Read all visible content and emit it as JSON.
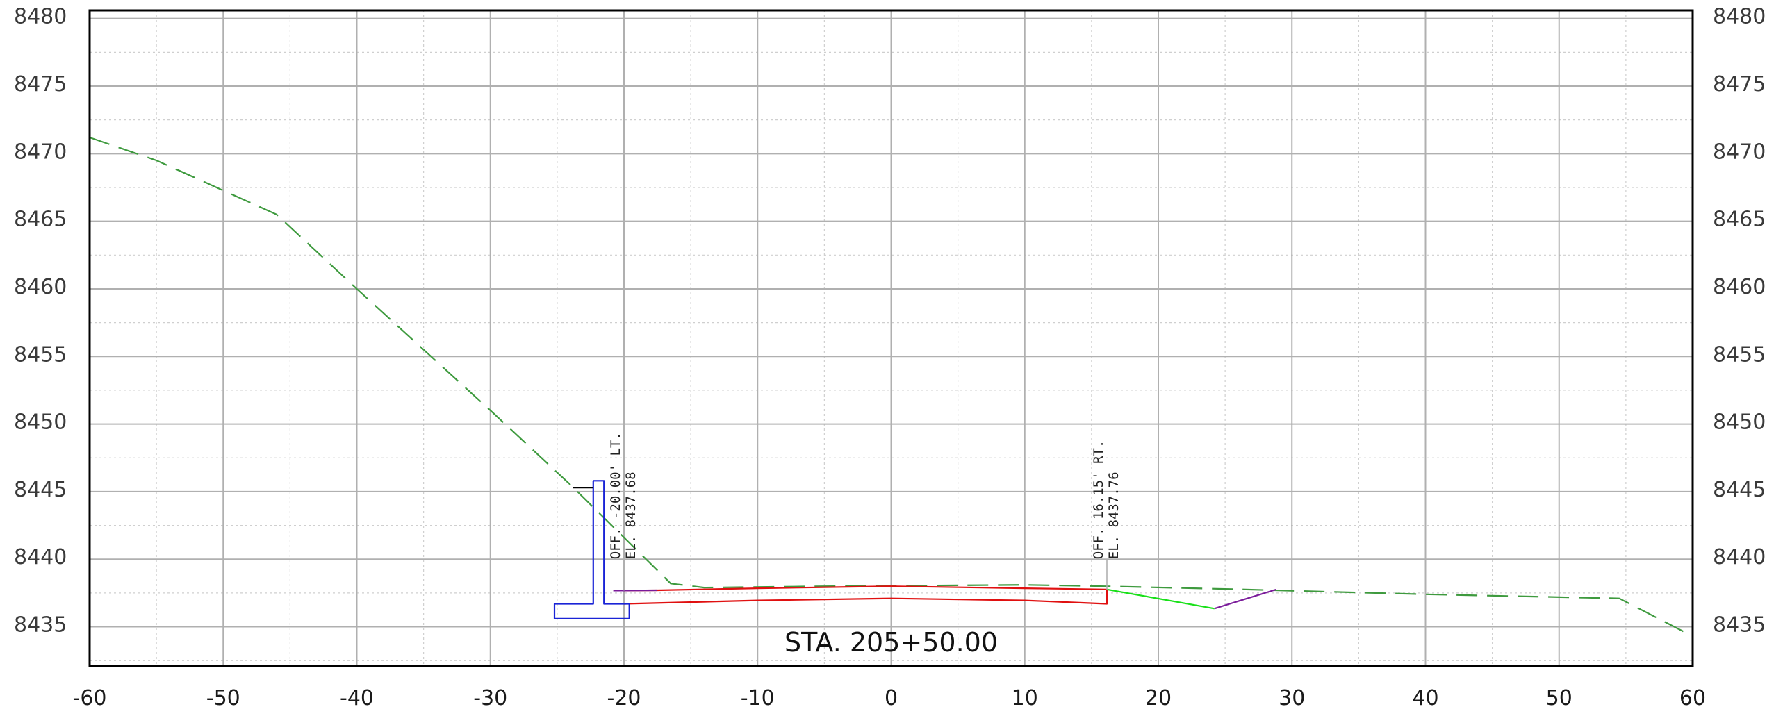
{
  "chart_data": {
    "type": "cross-section",
    "title": "STA. 205+50.00",
    "xlim": [
      -60,
      60
    ],
    "ylim": [
      8432.1,
      8480.6
    ],
    "x_ticks": [
      -60,
      -50,
      -40,
      -30,
      -20,
      -10,
      0,
      10,
      20,
      30,
      40,
      50,
      60
    ],
    "x_tick_labels": [
      "-60",
      "-50",
      "-40",
      "-30",
      "-20",
      "-10",
      "0",
      "10",
      "20",
      "30",
      "40",
      "50",
      "60"
    ],
    "y_ticks": [
      8435,
      8440,
      8445,
      8450,
      8455,
      8460,
      8465,
      8470,
      8475,
      8480
    ],
    "y_tick_labels": [
      "8435",
      "8440",
      "8445",
      "8450",
      "8455",
      "8460",
      "8465",
      "8470",
      "8475",
      "8480"
    ],
    "major_grid": true,
    "minor_grid": true,
    "colors": {
      "existing_ground": "#3e9a3e",
      "pavement": "#e01010",
      "wall": "#1a24d6",
      "side_slope": "#19e019",
      "ditch": "#7a1a9a",
      "grid_major": "#b0b0b0",
      "grid_minor": "#cfcfcf",
      "border": "#000000"
    },
    "series": [
      {
        "style": "dashed",
        "color_key": "existing_ground",
        "x": [
          -60,
          -55,
          -46,
          -40,
          -30,
          -24,
          -16.5,
          -14,
          -5,
          10,
          16,
          25,
          40,
          54.5,
          60
        ],
        "y": [
          8471.2,
          8469.5,
          8465.5,
          8460.0,
          8451.0,
          8445.5,
          8438.2,
          8437.9,
          8438.0,
          8438.1,
          8438.0,
          8437.8,
          8437.4,
          8437.1,
          8434.3
        ]
      },
      {
        "style": "solid",
        "color_key": "pavement",
        "x": [
          -20.0,
          -17.5,
          -10,
          0,
          10,
          16.15,
          16.15,
          10,
          0,
          -10,
          -20.0
        ],
        "y": [
          8437.68,
          8437.7,
          8437.85,
          8438.0,
          8437.85,
          8437.76,
          8436.7,
          8436.95,
          8437.1,
          8436.95,
          8436.7
        ]
      },
      {
        "style": "solid",
        "color_key": "side_slope",
        "x": [
          16.15,
          24.2
        ],
        "y": [
          8437.76,
          8436.35
        ]
      },
      {
        "style": "solid",
        "color_key": "ditch",
        "x": [
          24.2,
          28.8
        ],
        "y": [
          8436.35,
          8437.75
        ]
      },
      {
        "style": "solid",
        "color_key": "ditch",
        "x": [
          -20.8,
          -17.5
        ],
        "y": [
          8437.68,
          8437.7
        ]
      },
      {
        "style": "solid",
        "color_key": "wall",
        "x": [
          -22.3,
          -21.5,
          -21.5,
          -20.8,
          -20.8,
          -19.6,
          -19.6,
          -25.2,
          -25.2,
          -22.3,
          -22.3
        ],
        "y": [
          8445.8,
          8445.8,
          8436.7,
          8436.7,
          8436.7,
          8436.7,
          8435.6,
          8435.6,
          8436.7,
          8436.7,
          8445.8
        ]
      },
      {
        "style": "solid",
        "color_key": "border",
        "x": [
          -23.8,
          -22.3
        ],
        "y": [
          8445.3,
          8445.3
        ]
      },
      {
        "style": "solid",
        "color_key": "grid_major",
        "x": [
          -20.0,
          -20.0
        ],
        "y": [
          8440.0,
          8437.68
        ]
      },
      {
        "style": "solid",
        "color_key": "grid_major",
        "x": [
          16.15,
          16.15
        ],
        "y": [
          8440.0,
          8437.76
        ]
      }
    ],
    "annotations": [
      {
        "x": -20.0,
        "y": 8440.0,
        "lines": [
          "OFF. -20.00' LT.",
          "EL. 8437.68"
        ]
      },
      {
        "x": 16.15,
        "y": 8440.0,
        "lines": [
          "OFF. 16.15' RT.",
          "EL. 8437.76"
        ]
      }
    ]
  }
}
